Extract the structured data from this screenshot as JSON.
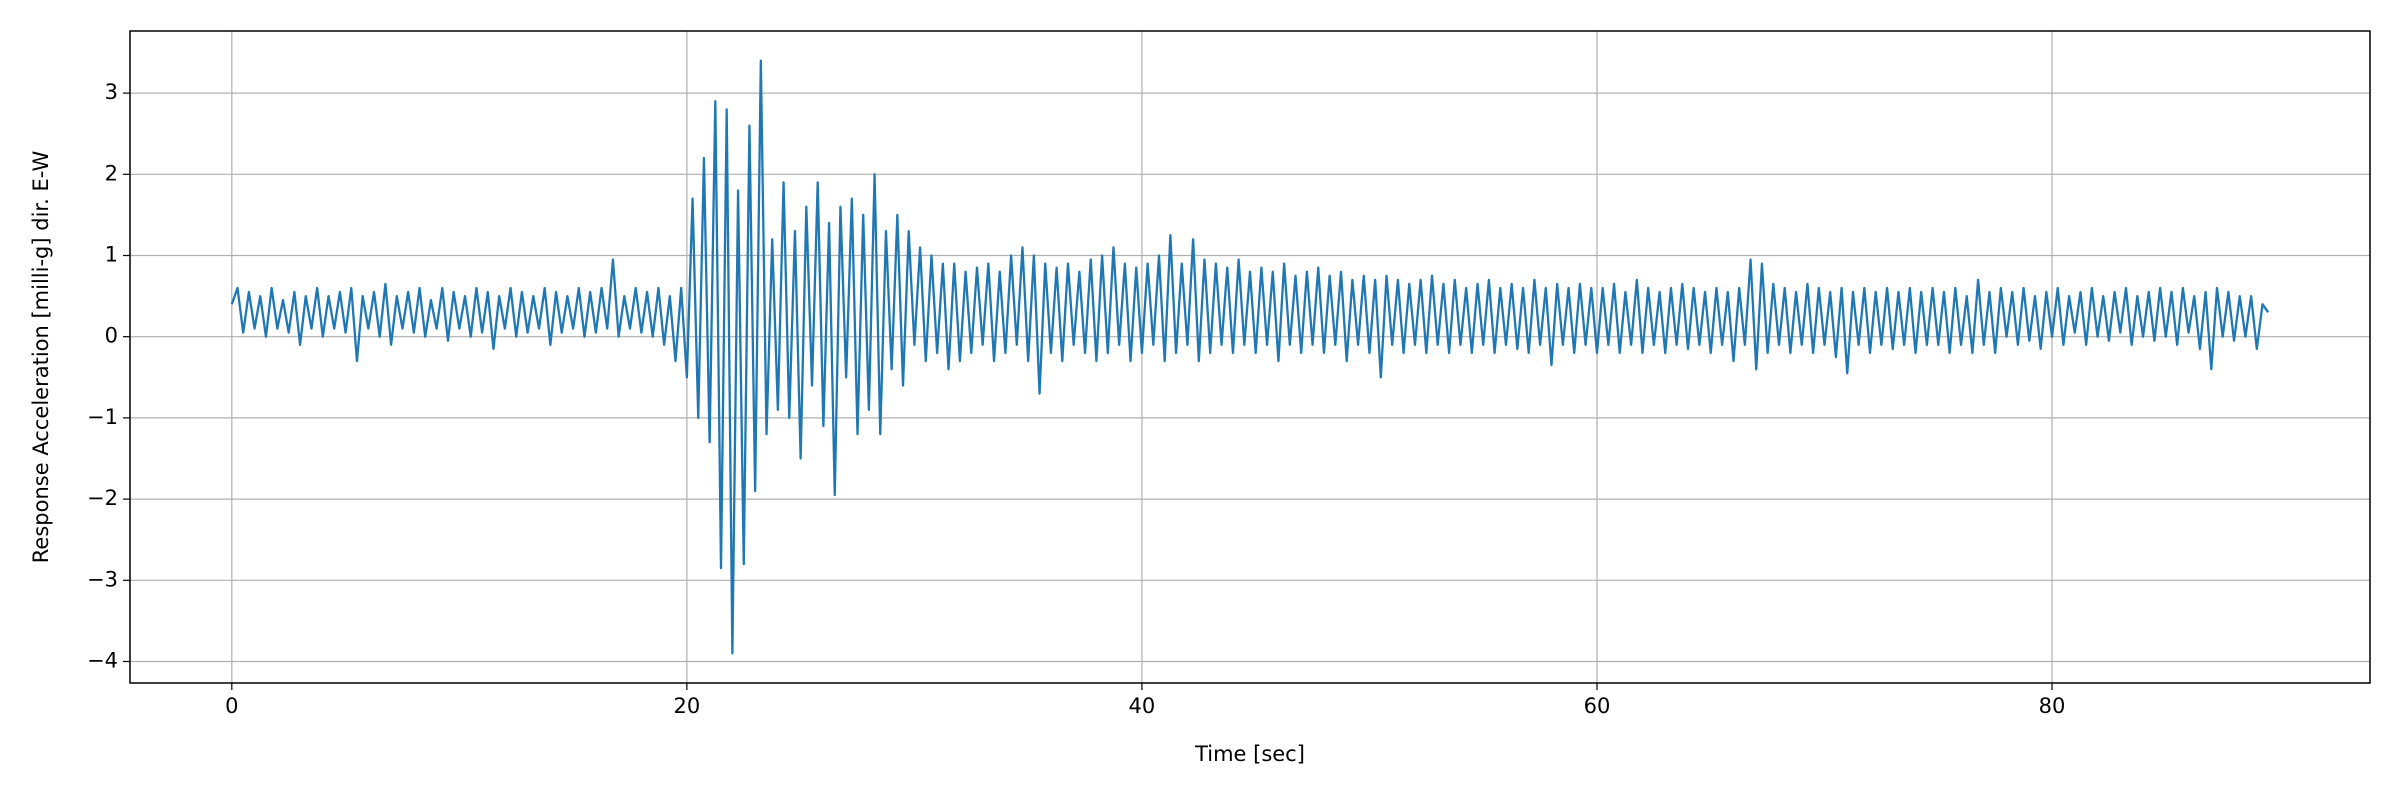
{
  "chart_data": {
    "type": "line",
    "x_label": "Time [sec]",
    "y_label": "Response Acceleration [milli-g] dir. E-W",
    "color": "#1f77b4",
    "grid": true,
    "xlim": [
      -4.475,
      93.975
    ],
    "xticks": [
      0,
      20,
      40,
      60,
      80
    ],
    "ylim": [
      -4.265,
      3.765
    ],
    "yticks": [
      {
        "value": -4,
        "label": "−4"
      },
      {
        "value": -3,
        "label": "−3"
      },
      {
        "value": -2,
        "label": "−2"
      },
      {
        "value": -1,
        "label": "−1"
      },
      0,
      1,
      2,
      3
    ],
    "x": [
      0,
      0.25,
      0.5,
      0.75,
      1,
      1.25,
      1.5,
      1.75,
      2,
      2.25,
      2.5,
      2.75,
      3,
      3.25,
      3.5,
      3.75,
      4,
      4.25,
      4.5,
      4.75,
      5,
      5.25,
      5.5,
      5.75,
      6,
      6.25,
      6.5,
      6.75,
      7,
      7.25,
      7.5,
      7.75,
      8,
      8.25,
      8.5,
      8.75,
      9,
      9.25,
      9.5,
      9.75,
      10,
      10.25,
      10.5,
      10.75,
      11,
      11.25,
      11.5,
      11.75,
      12,
      12.25,
      12.5,
      12.75,
      13,
      13.25,
      13.5,
      13.75,
      14,
      14.25,
      14.5,
      14.75,
      15,
      15.25,
      15.5,
      15.75,
      16,
      16.25,
      16.5,
      16.75,
      17,
      17.25,
      17.5,
      17.75,
      18,
      18.25,
      18.5,
      18.75,
      19,
      19.25,
      19.5,
      19.75,
      20,
      20.25,
      20.5,
      20.75,
      21,
      21.25,
      21.5,
      21.75,
      22,
      22.25,
      22.5,
      22.75,
      23,
      23.25,
      23.5,
      23.75,
      24,
      24.25,
      24.5,
      24.75,
      25,
      25.25,
      25.5,
      25.75,
      26,
      26.25,
      26.5,
      26.75,
      27,
      27.25,
      27.5,
      27.75,
      28,
      28.25,
      28.5,
      28.75,
      29,
      29.25,
      29.5,
      29.75,
      30,
      30.25,
      30.5,
      30.75,
      31,
      31.25,
      31.5,
      31.75,
      32,
      32.25,
      32.5,
      32.75,
      33,
      33.25,
      33.5,
      33.75,
      34,
      34.25,
      34.5,
      34.75,
      35,
      35.25,
      35.5,
      35.75,
      36,
      36.25,
      36.5,
      36.75,
      37,
      37.25,
      37.5,
      37.75,
      38,
      38.25,
      38.5,
      38.75,
      39,
      39.25,
      39.5,
      39.75,
      40,
      40.25,
      40.5,
      40.75,
      41,
      41.25,
      41.5,
      41.75,
      42,
      42.25,
      42.5,
      42.75,
      43,
      43.25,
      43.5,
      43.75,
      44,
      44.25,
      44.5,
      44.75,
      45,
      45.25,
      45.5,
      45.75,
      46,
      46.25,
      46.5,
      46.75,
      47,
      47.25,
      47.5,
      47.75,
      48,
      48.25,
      48.5,
      48.75,
      49,
      49.25,
      49.5,
      49.75,
      50,
      50.25,
      50.5,
      50.75,
      51,
      51.25,
      51.5,
      51.75,
      52,
      52.25,
      52.5,
      52.75,
      53,
      53.25,
      53.5,
      53.75,
      54,
      54.25,
      54.5,
      54.75,
      55,
      55.25,
      55.5,
      55.75,
      56,
      56.25,
      56.5,
      56.75,
      57,
      57.25,
      57.5,
      57.75,
      58,
      58.25,
      58.5,
      58.75,
      59,
      59.25,
      59.5,
      59.75,
      60,
      60.25,
      60.5,
      60.75,
      61,
      61.25,
      61.5,
      61.75,
      62,
      62.25,
      62.5,
      62.75,
      63,
      63.25,
      63.5,
      63.75,
      64,
      64.25,
      64.5,
      64.75,
      65,
      65.25,
      65.5,
      65.75,
      66,
      66.25,
      66.5,
      66.75,
      67,
      67.25,
      67.5,
      67.75,
      68,
      68.25,
      68.5,
      68.75,
      69,
      69.25,
      69.5,
      69.75,
      70,
      70.25,
      70.5,
      70.75,
      71,
      71.25,
      71.5,
      71.75,
      72,
      72.25,
      72.5,
      72.75,
      73,
      73.25,
      73.5,
      73.75,
      74,
      74.25,
      74.5,
      74.75,
      75,
      75.25,
      75.5,
      75.75,
      76,
      76.25,
      76.5,
      76.75,
      77,
      77.25,
      77.5,
      77.75,
      78,
      78.25,
      78.5,
      78.75,
      79,
      79.25,
      79.5,
      79.75,
      80,
      80.25,
      80.5,
      80.75,
      81,
      81.25,
      81.5,
      81.75,
      82,
      82.25,
      82.5,
      82.75,
      83,
      83.25,
      83.5,
      83.75,
      84,
      84.25,
      84.5,
      84.75,
      85,
      85.25,
      85.5,
      85.75,
      86,
      86.25,
      86.5,
      86.75,
      87,
      87.25,
      87.5,
      87.75,
      88,
      88.25,
      88.5,
      88.75,
      89,
      89.25,
      89.5
    ],
    "values": [
      0.4,
      0.6,
      0.05,
      0.55,
      0.1,
      0.5,
      0.0,
      0.6,
      0.1,
      0.45,
      0.05,
      0.55,
      -0.1,
      0.5,
      0.1,
      0.6,
      0.0,
      0.5,
      0.1,
      0.55,
      0.05,
      0.6,
      -0.3,
      0.5,
      0.1,
      0.55,
      0.0,
      0.65,
      -0.1,
      0.5,
      0.1,
      0.55,
      0.05,
      0.6,
      0.0,
      0.45,
      0.1,
      0.6,
      -0.05,
      0.55,
      0.1,
      0.5,
      0.0,
      0.6,
      0.05,
      0.55,
      -0.15,
      0.5,
      0.1,
      0.6,
      0.0,
      0.55,
      0.05,
      0.5,
      0.1,
      0.6,
      -0.1,
      0.55,
      0.05,
      0.5,
      0.1,
      0.6,
      0.0,
      0.55,
      0.05,
      0.6,
      0.1,
      0.95,
      0.0,
      0.5,
      0.1,
      0.6,
      0.05,
      0.55,
      0.0,
      0.6,
      -0.1,
      0.5,
      -0.3,
      0.6,
      -0.5,
      1.7,
      -1.0,
      2.2,
      -1.3,
      2.9,
      -2.85,
      2.8,
      -3.9,
      1.8,
      -2.8,
      2.6,
      -1.9,
      3.4,
      -1.2,
      1.2,
      -0.9,
      1.9,
      -1.0,
      1.3,
      -1.5,
      1.6,
      -0.6,
      1.9,
      -1.1,
      1.4,
      -1.95,
      1.6,
      -0.5,
      1.7,
      -1.2,
      1.5,
      -0.9,
      2.0,
      -1.2,
      1.3,
      -0.4,
      1.5,
      -0.6,
      1.3,
      -0.1,
      1.1,
      -0.3,
      1.0,
      -0.2,
      0.9,
      -0.4,
      0.9,
      -0.3,
      0.8,
      -0.2,
      0.85,
      -0.1,
      0.9,
      -0.3,
      0.8,
      -0.2,
      1.0,
      -0.1,
      1.1,
      -0.3,
      1.0,
      -0.7,
      0.9,
      -0.2,
      0.85,
      -0.3,
      0.9,
      -0.1,
      0.8,
      -0.2,
      0.95,
      -0.3,
      1.0,
      -0.2,
      1.1,
      -0.1,
      0.9,
      -0.3,
      0.85,
      -0.2,
      0.9,
      -0.1,
      1.0,
      -0.3,
      1.25,
      -0.2,
      0.9,
      -0.1,
      1.2,
      -0.3,
      0.95,
      -0.2,
      0.9,
      -0.1,
      0.85,
      -0.2,
      0.95,
      -0.1,
      0.8,
      -0.2,
      0.85,
      -0.1,
      0.8,
      -0.3,
      0.9,
      -0.1,
      0.75,
      -0.2,
      0.8,
      -0.1,
      0.85,
      -0.2,
      0.75,
      -0.1,
      0.8,
      -0.3,
      0.7,
      -0.1,
      0.75,
      -0.2,
      0.7,
      -0.5,
      0.75,
      -0.1,
      0.7,
      -0.2,
      0.65,
      -0.1,
      0.7,
      -0.2,
      0.75,
      -0.1,
      0.65,
      -0.2,
      0.7,
      -0.1,
      0.6,
      -0.2,
      0.65,
      -0.1,
      0.7,
      -0.2,
      0.6,
      -0.1,
      0.65,
      -0.15,
      0.6,
      -0.2,
      0.7,
      -0.1,
      0.6,
      -0.35,
      0.65,
      -0.1,
      0.6,
      -0.2,
      0.65,
      -0.1,
      0.6,
      -0.2,
      0.6,
      -0.1,
      0.65,
      -0.2,
      0.55,
      -0.1,
      0.7,
      -0.2,
      0.6,
      -0.1,
      0.55,
      -0.2,
      0.6,
      -0.1,
      0.65,
      -0.15,
      0.6,
      -0.1,
      0.55,
      -0.2,
      0.6,
      -0.1,
      0.55,
      -0.3,
      0.6,
      -0.1,
      0.95,
      -0.4,
      0.9,
      -0.2,
      0.65,
      -0.1,
      0.6,
      -0.2,
      0.55,
      -0.1,
      0.65,
      -0.2,
      0.6,
      -0.1,
      0.55,
      -0.25,
      0.6,
      -0.45,
      0.55,
      -0.1,
      0.6,
      -0.2,
      0.55,
      -0.1,
      0.6,
      -0.15,
      0.55,
      -0.1,
      0.6,
      -0.2,
      0.55,
      -0.1,
      0.6,
      -0.1,
      0.55,
      -0.2,
      0.6,
      -0.1,
      0.5,
      -0.2,
      0.7,
      -0.1,
      0.55,
      -0.2,
      0.6,
      0.0,
      0.55,
      -0.1,
      0.6,
      -0.05,
      0.5,
      -0.15,
      0.55,
      0.0,
      0.6,
      -0.1,
      0.5,
      0.05,
      0.55,
      -0.1,
      0.6,
      0.0,
      0.5,
      -0.05,
      0.55,
      0.05,
      0.6,
      -0.1,
      0.5,
      0.0,
      0.55,
      -0.05,
      0.6,
      0.0,
      0.55,
      -0.1,
      0.6,
      0.05,
      0.5,
      -0.15,
      0.55,
      -0.4,
      0.6,
      0.0,
      0.55,
      -0.05,
      0.5,
      0.0,
      0.5,
      -0.15,
      0.4,
      0.3
    ]
  }
}
